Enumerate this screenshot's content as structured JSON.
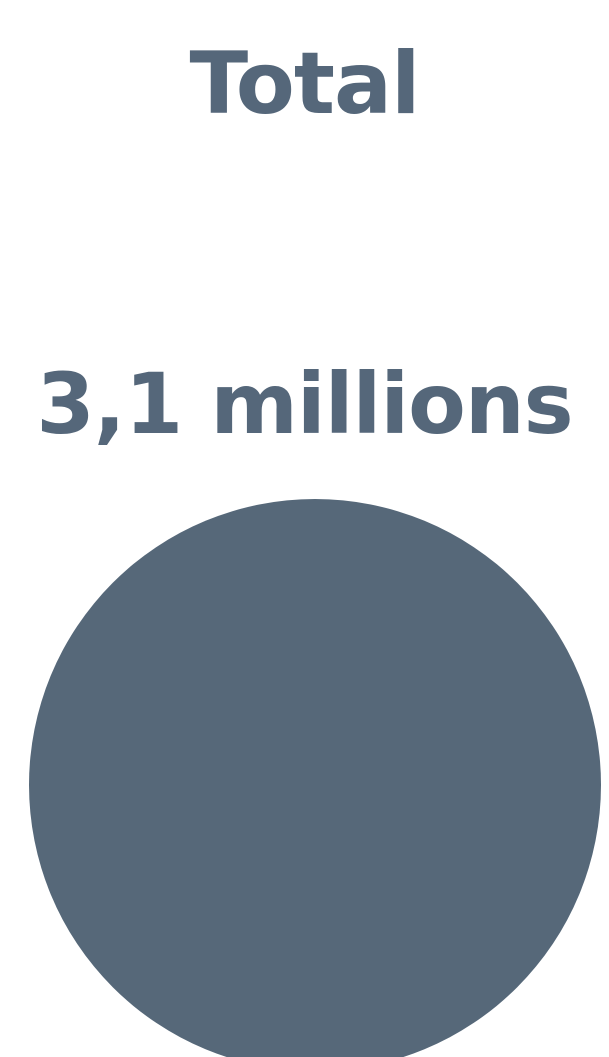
{
  "colors": {
    "text": "#55677a",
    "bubble": "#566879",
    "background": "#ffffff"
  },
  "chart_data": {
    "type": "bubble",
    "title": "Total",
    "value_label": "3,1 millions",
    "value": 3100000,
    "unit": "millions"
  }
}
